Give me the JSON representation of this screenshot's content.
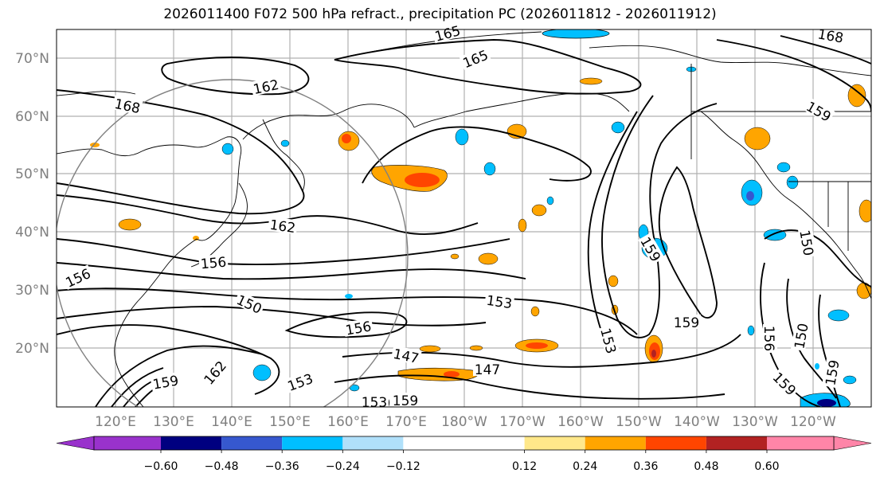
{
  "title": "2026011400 F072 500 hPa refract., precipitation PC (2026011812 - 2026011912)",
  "map": {
    "lat_labels": [
      "70°N",
      "60°N",
      "50°N",
      "40°N",
      "30°N",
      "20°N"
    ],
    "lon_labels": [
      "120°E",
      "130°E",
      "140°E",
      "150°E",
      "160°E",
      "170°E",
      "180°W",
      "170°W",
      "160°W",
      "150°W",
      "140°W",
      "130°W",
      "120°W"
    ],
    "contour_labels": [
      "165",
      "168",
      "162",
      "165",
      "168",
      "162",
      "156",
      "156",
      "150",
      "153",
      "156",
      "147",
      "147",
      "153",
      "150",
      "159",
      "159",
      "159",
      "150",
      "153",
      "156",
      "159",
      "159",
      "150",
      "159",
      "162",
      "153",
      "159"
    ],
    "colors": {
      "land_outline": "#000000",
      "grid": "#b0b0b0",
      "contour": "#000000",
      "circle": "#808080",
      "axis_text": "#7f7f7f"
    }
  },
  "colorbar": {
    "tick_labels": [
      "−0.60",
      "−0.48",
      "−0.36",
      "−0.24",
      "−0.12",
      "0.12",
      "0.24",
      "0.36",
      "0.48",
      "0.60"
    ],
    "tick_values": [
      -0.6,
      -0.48,
      -0.36,
      -0.24,
      -0.12,
      0.12,
      0.24,
      0.36,
      0.48,
      0.6
    ],
    "bins": [
      {
        "color": "#9932cc"
      },
      {
        "color": "#000080"
      },
      {
        "color": "#3658cf"
      },
      {
        "color": "#00bfff"
      },
      {
        "color": "#b0e0fa"
      },
      {
        "color": "#ffffff"
      },
      {
        "color": "#ffe88a"
      },
      {
        "color": "#ffa500"
      },
      {
        "color": "#ff4500"
      },
      {
        "color": "#b22222"
      },
      {
        "color": "#ff85a8"
      }
    ]
  }
}
